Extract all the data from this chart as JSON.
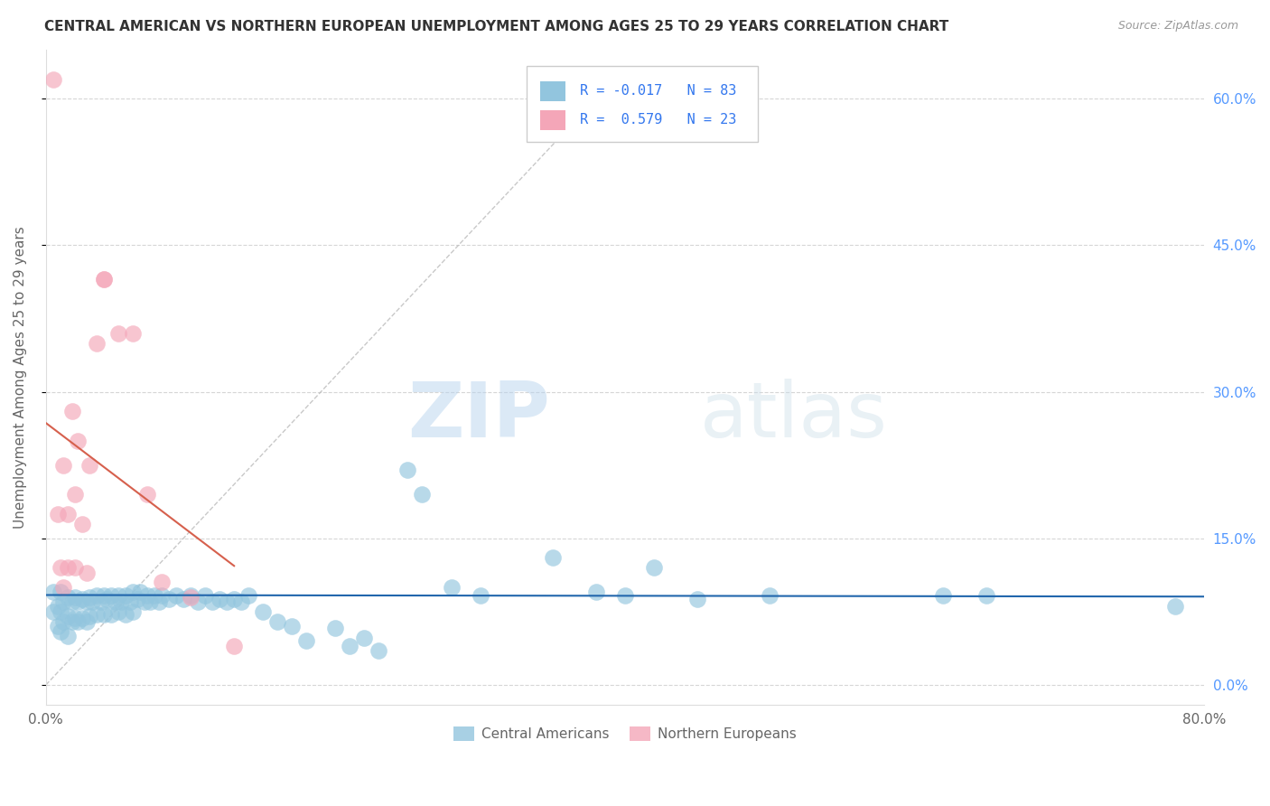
{
  "title": "CENTRAL AMERICAN VS NORTHERN EUROPEAN UNEMPLOYMENT AMONG AGES 25 TO 29 YEARS CORRELATION CHART",
  "source": "Source: ZipAtlas.com",
  "ylabel": "Unemployment Among Ages 25 to 29 years",
  "xlim": [
    0.0,
    0.8
  ],
  "ylim": [
    -0.02,
    0.65
  ],
  "yticks": [
    0.0,
    0.15,
    0.3,
    0.45,
    0.6
  ],
  "ytick_labels_right": [
    "0.0%",
    "15.0%",
    "30.0%",
    "45.0%",
    "60.0%"
  ],
  "xticks": [
    0.0,
    0.1,
    0.2,
    0.3,
    0.4,
    0.5,
    0.6,
    0.7,
    0.8
  ],
  "xtick_labels": [
    "0.0%",
    "",
    "",
    "",
    "",
    "",
    "",
    "",
    "80.0%"
  ],
  "blue_color": "#92c5de",
  "pink_color": "#f4a6b8",
  "blue_line_color": "#2166ac",
  "pink_line_color": "#d6604d",
  "dashed_line_color": "#bbbbbb",
  "legend_R_blue": "-0.017",
  "legend_N_blue": "83",
  "legend_R_pink": "0.579",
  "legend_N_pink": "23",
  "watermark_zip": "ZIP",
  "watermark_atlas": "atlas",
  "blue_points_x": [
    0.005,
    0.005,
    0.008,
    0.008,
    0.01,
    0.01,
    0.01,
    0.012,
    0.012,
    0.015,
    0.015,
    0.015,
    0.018,
    0.018,
    0.02,
    0.02,
    0.022,
    0.022,
    0.025,
    0.025,
    0.028,
    0.028,
    0.03,
    0.03,
    0.032,
    0.035,
    0.035,
    0.038,
    0.04,
    0.04,
    0.042,
    0.045,
    0.045,
    0.048,
    0.05,
    0.05,
    0.052,
    0.055,
    0.055,
    0.058,
    0.06,
    0.06,
    0.063,
    0.065,
    0.068,
    0.07,
    0.072,
    0.075,
    0.078,
    0.08,
    0.085,
    0.09,
    0.095,
    0.1,
    0.105,
    0.11,
    0.115,
    0.12,
    0.125,
    0.13,
    0.135,
    0.14,
    0.15,
    0.16,
    0.17,
    0.18,
    0.2,
    0.21,
    0.22,
    0.23,
    0.25,
    0.26,
    0.28,
    0.3,
    0.35,
    0.38,
    0.4,
    0.42,
    0.45,
    0.5,
    0.62,
    0.65,
    0.78
  ],
  "blue_points_y": [
    0.095,
    0.075,
    0.08,
    0.06,
    0.095,
    0.075,
    0.055,
    0.085,
    0.065,
    0.09,
    0.07,
    0.05,
    0.085,
    0.065,
    0.09,
    0.068,
    0.085,
    0.065,
    0.088,
    0.068,
    0.085,
    0.065,
    0.09,
    0.07,
    0.085,
    0.092,
    0.072,
    0.085,
    0.092,
    0.072,
    0.088,
    0.092,
    0.072,
    0.085,
    0.092,
    0.075,
    0.085,
    0.092,
    0.072,
    0.085,
    0.095,
    0.075,
    0.088,
    0.095,
    0.085,
    0.092,
    0.085,
    0.092,
    0.085,
    0.092,
    0.088,
    0.092,
    0.088,
    0.092,
    0.085,
    0.092,
    0.085,
    0.088,
    0.085,
    0.088,
    0.085,
    0.092,
    0.075,
    0.065,
    0.06,
    0.045,
    0.058,
    0.04,
    0.048,
    0.035,
    0.22,
    0.195,
    0.1,
    0.092,
    0.13,
    0.095,
    0.092,
    0.12,
    0.088,
    0.092,
    0.092,
    0.092,
    0.08
  ],
  "pink_points_x": [
    0.005,
    0.008,
    0.01,
    0.012,
    0.012,
    0.015,
    0.015,
    0.018,
    0.02,
    0.02,
    0.022,
    0.025,
    0.028,
    0.03,
    0.035,
    0.04,
    0.04,
    0.05,
    0.06,
    0.07,
    0.08,
    0.1,
    0.13
  ],
  "pink_points_y": [
    0.62,
    0.175,
    0.12,
    0.225,
    0.1,
    0.175,
    0.12,
    0.28,
    0.195,
    0.12,
    0.25,
    0.165,
    0.115,
    0.225,
    0.35,
    0.415,
    0.415,
    0.36,
    0.36,
    0.195,
    0.105,
    0.09,
    0.04
  ]
}
